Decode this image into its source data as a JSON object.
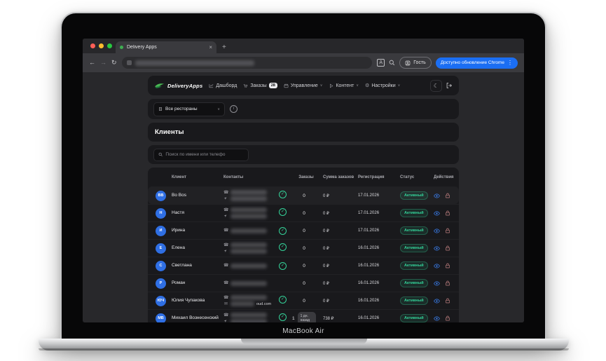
{
  "laptop": {
    "label": "MacBook Air"
  },
  "browser": {
    "tab": {
      "title": "Delivery Apps",
      "close": "×",
      "new_tab": "+"
    },
    "toolbar": {
      "back": "←",
      "forward": "→",
      "reload": "↻",
      "translate_letter": "A"
    },
    "profile": {
      "label": "Гость"
    },
    "update_button": {
      "label": "Доступно обновление Chrome",
      "menu_dots": "⋮"
    }
  },
  "navbar": {
    "brand": "DeliveryApps",
    "items": [
      {
        "label": "Дашборд"
      },
      {
        "label": "Заказы",
        "badge": "28"
      },
      {
        "label": "Управление",
        "chevron": "∨"
      },
      {
        "label": "Контент",
        "chevron": "∨"
      },
      {
        "label": "Настройки",
        "chevron": "∨"
      }
    ],
    "settings_gear": "⚙",
    "theme_toggle": "☾"
  },
  "filters": {
    "restaurant_select": "Все рестораны",
    "select_chevron": "∨",
    "info": "i"
  },
  "page": {
    "title": "Клиенты"
  },
  "search": {
    "placeholder": "Поиск по имени или телефо"
  },
  "table": {
    "headers": [
      "Клиент",
      "Контакты",
      "Заказы",
      "Сумма заказов",
      "Регистрация",
      "Статус",
      "Действия"
    ],
    "rows": [
      {
        "initials": "BB",
        "name": "Bo Bos",
        "contacts": [
          "phone",
          "telegram"
        ],
        "verified": true,
        "orders": "0",
        "orders_badge": "",
        "sum": "0 ₽",
        "registered": "17.01.2026",
        "status": "Активный",
        "highlight": true
      },
      {
        "initials": "Н",
        "name": "Настя",
        "contacts": [
          "phone",
          "telegram"
        ],
        "verified": true,
        "orders": "0",
        "orders_badge": "",
        "sum": "0 ₽",
        "registered": "17.01.2026",
        "status": "Активный"
      },
      {
        "initials": "И",
        "name": "Ирина",
        "contacts": [
          "phone"
        ],
        "verified": true,
        "orders": "0",
        "orders_badge": "",
        "sum": "0 ₽",
        "registered": "17.01.2026",
        "status": "Активный"
      },
      {
        "initials": "Е",
        "name": "Елена",
        "contacts": [
          "phone",
          "telegram"
        ],
        "verified": true,
        "orders": "0",
        "orders_badge": "",
        "sum": "0 ₽",
        "registered": "16.01.2026",
        "status": "Активный"
      },
      {
        "initials": "С",
        "name": "Светлана",
        "contacts": [
          "phone"
        ],
        "verified": true,
        "orders": "0",
        "orders_badge": "",
        "sum": "0 ₽",
        "registered": "16.01.2026",
        "status": "Активный"
      },
      {
        "initials": "Р",
        "name": "Роман",
        "contacts": [
          "phone"
        ],
        "verified": false,
        "orders": "0",
        "orders_badge": "",
        "sum": "0 ₽",
        "registered": "16.01.2026",
        "status": "Активный"
      },
      {
        "initials": "ЮЧ",
        "name": "Юлия Чупакова",
        "contacts": [
          "phone",
          "email"
        ],
        "email_visible": "oud.com",
        "verified": true,
        "orders": "0",
        "orders_badge": "",
        "sum": "0 ₽",
        "registered": "16.01.2026",
        "status": "Активный"
      },
      {
        "initials": "МВ",
        "name": "Михаил Вознесенский",
        "contacts": [
          "phone",
          "telegram"
        ],
        "verified": true,
        "orders": "1",
        "orders_badge": "1 дн. назад",
        "sum": "738 ₽",
        "registered": "16.01.2026",
        "status": "Активный"
      }
    ]
  },
  "icons_glyphs": {
    "phone": "☎",
    "telegram": "➤",
    "email": "✉",
    "check": "✓"
  },
  "colors": {
    "chrome_update_blue": "#1b6ef3",
    "avatar_blue": "#2f6fe4",
    "status_green": "#34d399",
    "eye_blue": "#3b82f6",
    "lock_red": "#c08080",
    "traffic_red": "#ff5f57",
    "traffic_yellow": "#febc2e",
    "traffic_green": "#28c840"
  }
}
